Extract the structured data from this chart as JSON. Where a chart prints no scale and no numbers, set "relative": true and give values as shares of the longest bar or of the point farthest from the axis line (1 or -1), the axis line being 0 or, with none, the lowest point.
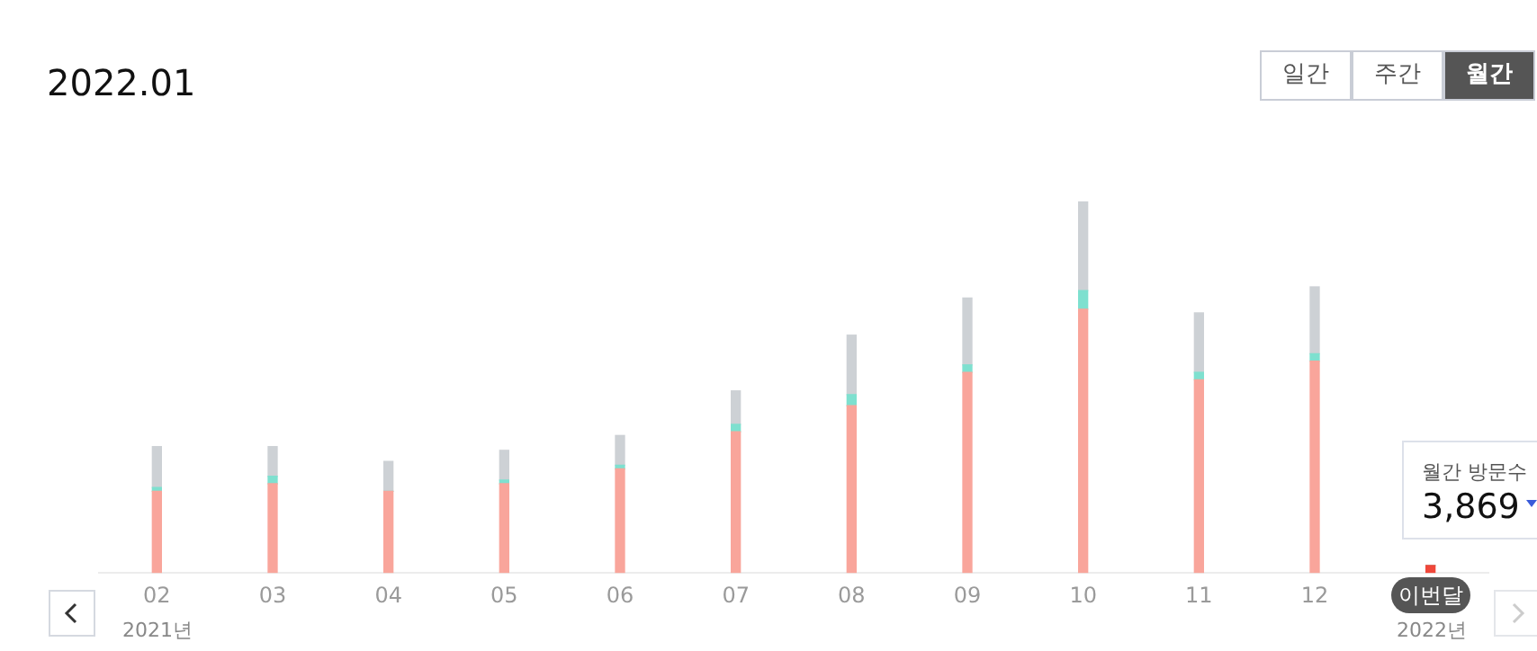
{
  "chart_data": {
    "type": "bar",
    "title": "2022.01",
    "relative": true,
    "stacked": true,
    "legend": false,
    "categories": [
      "02",
      "03",
      "04",
      "05",
      "06",
      "07",
      "08",
      "09",
      "10",
      "11",
      "12",
      "이번달"
    ],
    "series": [
      {
        "color": "#f9a59b",
        "colors": [
          "#f9a59b",
          "#f9a59b",
          "#f9a59b",
          "#f9a59b",
          "#f9a59b",
          "#f9a59b",
          "#f9a59b",
          "#f9a59b",
          "#f9a59b",
          "#f9a59b",
          "#f9a59b",
          "#f0473a"
        ],
        "values": [
          0.22,
          0.24,
          0.22,
          0.24,
          0.28,
          0.38,
          0.45,
          0.54,
          0.71,
          0.52,
          0.57,
          0.02
        ]
      },
      {
        "color": "#7ee0cf",
        "values": [
          0.01,
          0.02,
          0,
          0.01,
          0.01,
          0.02,
          0.03,
          0.02,
          0.05,
          0.02,
          0.02,
          0
        ]
      },
      {
        "color": "#cdd1d5",
        "values": [
          0.11,
          0.08,
          0.08,
          0.08,
          0.08,
          0.09,
          0.16,
          0.18,
          0.24,
          0.16,
          0.18,
          0
        ]
      }
    ],
    "annotations": [
      "일간",
      "주간",
      "월간",
      "2021년",
      "2022년",
      "월간 방문수",
      "3,869"
    ]
  }
}
